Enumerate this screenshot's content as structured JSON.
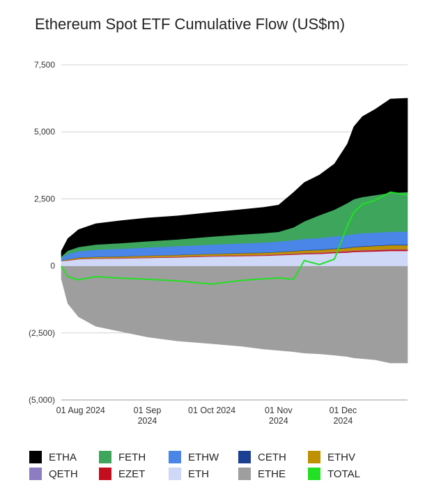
{
  "chart_data": {
    "type": "area",
    "title": "Ethereum Spot ETF Cumulative Flow (US$m)",
    "xlabel": "",
    "ylabel": "",
    "ylim": [
      -5000,
      7500
    ],
    "y_ticks": [
      7500,
      5000,
      2500,
      0,
      -2500,
      -5000
    ],
    "y_tick_labels": [
      "7,500",
      "5,000",
      "2,500",
      "0",
      "(2,500)",
      "(5,000)"
    ],
    "x_ticks": [
      "2024-08-01",
      "2024-09-01",
      "2024-10-01",
      "2024-11-01",
      "2024-12-01"
    ],
    "x_tick_labels": [
      [
        "01 Aug 2024"
      ],
      [
        "01 Sep",
        "2024"
      ],
      [
        "01 Oct 2024"
      ],
      [
        "01 Nov",
        "2024"
      ],
      [
        "01 Dec",
        "2024"
      ]
    ],
    "xlim": [
      "2024-07-23",
      "2024-12-31"
    ],
    "grid": true,
    "legend_position": "bottom",
    "x": [
      "2024-07-23",
      "2024-07-26",
      "2024-07-31",
      "2024-08-08",
      "2024-08-20",
      "2024-09-01",
      "2024-09-15",
      "2024-10-01",
      "2024-10-15",
      "2024-10-25",
      "2024-11-01",
      "2024-11-08",
      "2024-11-13",
      "2024-11-20",
      "2024-11-27",
      "2024-12-03",
      "2024-12-06",
      "2024-12-10",
      "2024-12-16",
      "2024-12-23",
      "2024-12-31"
    ],
    "series": [
      {
        "name": "ETHE",
        "color": "#9e9e9e",
        "values": [
          -480,
          -1400,
          -1900,
          -2250,
          -2450,
          -2650,
          -2800,
          -2900,
          -3000,
          -3100,
          -3150,
          -3200,
          -3250,
          -3280,
          -3330,
          -3380,
          -3430,
          -3460,
          -3500,
          -3620,
          -3620
        ]
      },
      {
        "name": "ETH",
        "color": "#cfd8f7",
        "values": [
          180,
          200,
          250,
          270,
          280,
          300,
          320,
          350,
          370,
          380,
          400,
          420,
          440,
          450,
          480,
          500,
          520,
          530,
          540,
          560,
          560
        ]
      },
      {
        "name": "EZET",
        "color": "#c40d1e",
        "values": [
          0,
          10,
          12,
          14,
          15,
          16,
          18,
          20,
          22,
          24,
          26,
          30,
          34,
          36,
          40,
          42,
          44,
          46,
          48,
          50,
          50
        ]
      },
      {
        "name": "QETH",
        "color": "#8e7cc3",
        "values": [
          0,
          4,
          5,
          6,
          7,
          8,
          8,
          9,
          9,
          10,
          10,
          11,
          12,
          12,
          13,
          14,
          14,
          15,
          15,
          15,
          15
        ]
      },
      {
        "name": "ETHV",
        "color": "#bf9000",
        "values": [
          10,
          30,
          40,
          45,
          50,
          55,
          60,
          65,
          70,
          75,
          80,
          85,
          90,
          95,
          100,
          110,
          120,
          130,
          140,
          150,
          150
        ]
      },
      {
        "name": "CETH",
        "color": "#1c3f94",
        "values": [
          0,
          5,
          8,
          10,
          10,
          10,
          11,
          12,
          12,
          13,
          14,
          15,
          16,
          17,
          18,
          19,
          20,
          20,
          20,
          20,
          20
        ]
      },
      {
        "name": "ETHW",
        "color": "#4a86e8",
        "values": [
          100,
          200,
          230,
          260,
          280,
          300,
          320,
          340,
          360,
          370,
          380,
          400,
          420,
          430,
          450,
          460,
          470,
          480,
          480,
          480,
          480
        ]
      },
      {
        "name": "FETH",
        "color": "#3ea55c",
        "values": [
          60,
          120,
          160,
          190,
          210,
          230,
          250,
          300,
          330,
          350,
          360,
          480,
          650,
          850,
          1000,
          1200,
          1300,
          1350,
          1400,
          1450,
          1480
        ]
      },
      {
        "name": "ETHA",
        "color": "#000000",
        "values": [
          200,
          450,
          650,
          780,
          840,
          870,
          880,
          900,
          930,
          960,
          1000,
          1300,
          1450,
          1500,
          1700,
          2200,
          2700,
          3000,
          3200,
          3500,
          3500
        ]
      },
      {
        "name": "TOTAL",
        "color": "#22e022",
        "type": "line",
        "values": [
          0,
          -400,
          -520,
          -400,
          -460,
          -500,
          -560,
          -680,
          -540,
          -480,
          -450,
          -500,
          200,
          50,
          250,
          1500,
          2000,
          2300,
          2450,
          2750,
          2650
        ]
      }
    ]
  },
  "legend": {
    "rows": [
      [
        {
          "label": "ETHA",
          "color": "#000000"
        },
        {
          "label": "FETH",
          "color": "#3ea55c"
        },
        {
          "label": "ETHW",
          "color": "#4a86e8"
        },
        {
          "label": "CETH",
          "color": "#1c3f94"
        },
        {
          "label": "ETHV",
          "color": "#bf9000"
        }
      ],
      [
        {
          "label": "QETH",
          "color": "#8e7cc3"
        },
        {
          "label": "EZET",
          "color": "#c40d1e"
        },
        {
          "label": "ETH",
          "color": "#cfd8f7"
        },
        {
          "label": "ETHE",
          "color": "#9e9e9e"
        },
        {
          "label": "TOTAL",
          "color": "#22e022"
        }
      ]
    ]
  }
}
